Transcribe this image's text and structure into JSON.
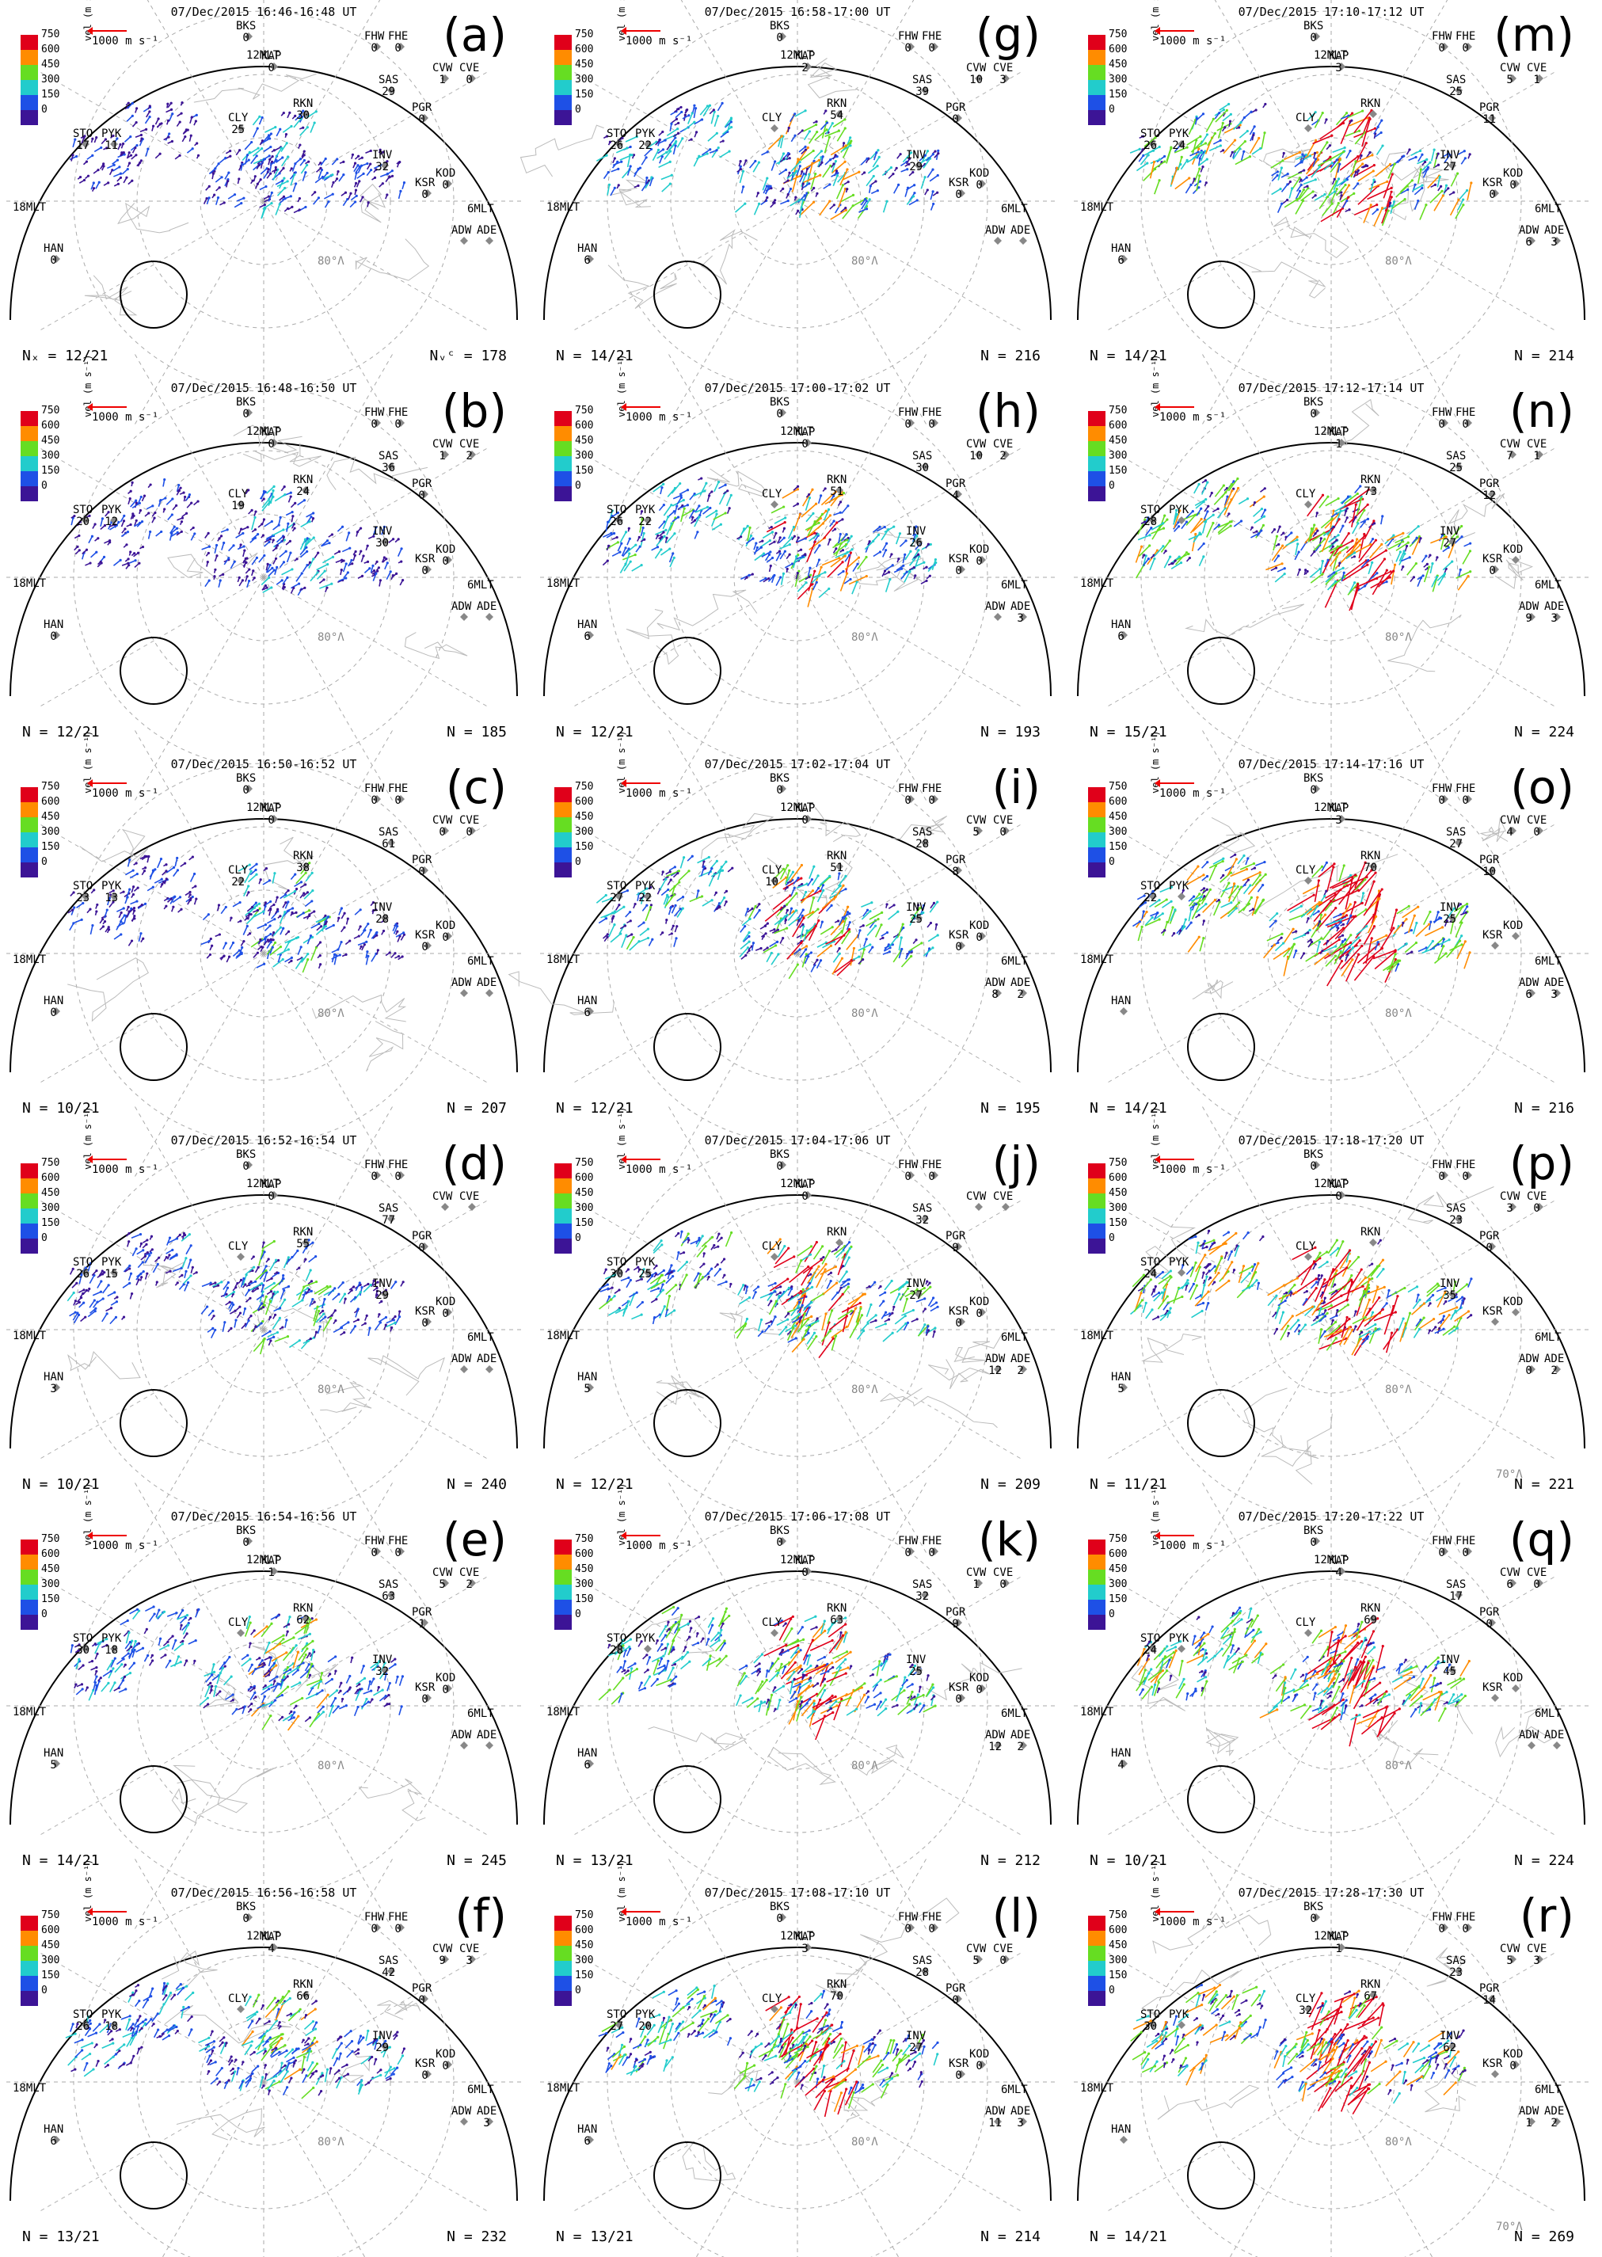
{
  "colorbar": {
    "unit": "vel (m s⁻¹)",
    "ticks": [
      "750",
      "600",
      "450",
      "300",
      "150",
      "0"
    ],
    "colors": [
      "#e0001a",
      "#ff8c00",
      "#66dd22",
      "#22cccc",
      "#1e50e6",
      "#3c1496"
    ],
    "ref_vector": "1000 m s⁻¹"
  },
  "grid_labels": {
    "noon": "12MLT",
    "dusk": "18MLT",
    "dawn": "6MLT",
    "lat80": "80°Λ",
    "lat70": "70°Λ"
  },
  "panels": [
    {
      "label": "(a)",
      "time": "07/Dec/2015 16:46-16:48 UT",
      "nrads": "Nₓ = 12/21",
      "nvc": "Nᵥᶜ = 178"
    },
    {
      "label": "(b)",
      "time": "07/Dec/2015 16:48-16:50 UT",
      "nrads": "N = 12/21",
      "nvc": "N = 185"
    },
    {
      "label": "(c)",
      "time": "07/Dec/2015 16:50-16:52 UT",
      "nrads": "N = 10/21",
      "nvc": "N = 207"
    },
    {
      "label": "(d)",
      "time": "07/Dec/2015 16:52-16:54 UT",
      "nrads": "N = 10/21",
      "nvc": "N = 240"
    },
    {
      "label": "(e)",
      "time": "07/Dec/2015 16:54-16:56 UT",
      "nrads": "N = 14/21",
      "nvc": "N = 245"
    },
    {
      "label": "(f)",
      "time": "07/Dec/2015 16:56-16:58 UT",
      "nrads": "N = 13/21",
      "nvc": "N = 232"
    },
    {
      "label": "(g)",
      "time": "07/Dec/2015 16:58-17:00 UT",
      "nrads": "N = 14/21",
      "nvc": "N = 216"
    },
    {
      "label": "(h)",
      "time": "07/Dec/2015 17:00-17:02 UT",
      "nrads": "N = 12/21",
      "nvc": "N = 193"
    },
    {
      "label": "(i)",
      "time": "07/Dec/2015 17:02-17:04 UT",
      "nrads": "N = 12/21",
      "nvc": "N = 195"
    },
    {
      "label": "(j)",
      "time": "07/Dec/2015 17:04-17:06 UT",
      "nrads": "N = 12/21",
      "nvc": "N = 209"
    },
    {
      "label": "(k)",
      "time": "07/Dec/2015 17:06-17:08 UT",
      "nrads": "N = 13/21",
      "nvc": "N = 212"
    },
    {
      "label": "(l)",
      "time": "07/Dec/2015 17:08-17:10 UT",
      "nrads": "N = 13/21",
      "nvc": "N = 214"
    },
    {
      "label": "(m)",
      "time": "07/Dec/2015 17:10-17:12 UT",
      "nrads": "N = 14/21",
      "nvc": "N = 214"
    },
    {
      "label": "(n)",
      "time": "07/Dec/2015 17:12-17:14 UT",
      "nrads": "N = 15/21",
      "nvc": "N = 224"
    },
    {
      "label": "(o)",
      "time": "07/Dec/2015 17:14-17:16 UT",
      "nrads": "N = 14/21",
      "nvc": "N = 216"
    },
    {
      "label": "(p)",
      "time": "07/Dec/2015 17:18-17:20 UT",
      "nrads": "N = 11/21",
      "nvc": "N = 221"
    },
    {
      "label": "(q)",
      "time": "07/Dec/2015 17:20-17:22 UT",
      "nrads": "N = 10/21",
      "nvc": "N = 224"
    },
    {
      "label": "(r)",
      "time": "07/Dec/2015 17:28-17:30 UT",
      "nrads": "N = 14/21",
      "nvc": "N = 269"
    }
  ],
  "radar_counts": [
    {
      "BKS": "0",
      "SAS": "29",
      "RKN": "30",
      "KAP": "0",
      "CLY": "25",
      "INV": "32",
      "STO": "17",
      "PYK": "11",
      "HAN": "0",
      "PGR": "0",
      "KSR": "0",
      "KOD": "0",
      "CVW": "1",
      "CVE": "0",
      "FHW": "0",
      "FHE": "0",
      "ADW": "",
      "ADE": ""
    },
    {
      "BKS": "0",
      "SAS": "36",
      "RKN": "24",
      "KAP": "0",
      "CLY": "19",
      "INV": "30",
      "STO": "20",
      "PYK": "12",
      "HAN": "0",
      "PGR": "0",
      "KSR": "0",
      "KOD": "0",
      "CVW": "1",
      "CVE": "2",
      "FHW": "0",
      "FHE": "0",
      "ADW": "",
      "ADE": ""
    },
    {
      "BKS": "0",
      "SAS": "61",
      "RKN": "38",
      "KAP": "0",
      "CLY": "22",
      "INV": "28",
      "STO": "23",
      "PYK": "13",
      "HAN": "0",
      "PGR": "0",
      "KSR": "0",
      "KOD": "0",
      "CVW": "0",
      "CVE": "0",
      "FHW": "0",
      "FHE": "0",
      "ADW": "",
      "ADE": ""
    },
    {
      "BKS": "0",
      "SAS": "77",
      "RKN": "55",
      "KAP": "0",
      "CLY": "",
      "INV": "29",
      "STO": "26",
      "PYK": "15",
      "HAN": "3",
      "PGR": "0",
      "KSR": "0",
      "KOD": "0",
      "CVW": "",
      "CVE": "",
      "FHW": "0",
      "FHE": "0",
      "ADW": "",
      "ADE": ""
    },
    {
      "BKS": "0",
      "SAS": "63",
      "RKN": "62",
      "KAP": "1",
      "CLY": "",
      "INV": "32",
      "STO": "30",
      "PYK": "18",
      "HAN": "5",
      "PGR": "1",
      "KSR": "0",
      "KOD": "0",
      "CVW": "5",
      "CVE": "2",
      "FHW": "0",
      "FHE": "0",
      "ADW": "",
      "ADE": ""
    },
    {
      "BKS": "0",
      "SAS": "42",
      "RKN": "66",
      "KAP": "4",
      "CLY": "",
      "INV": "29",
      "STO": "26",
      "PYK": "18",
      "HAN": "6",
      "PGR": "0",
      "KSR": "0",
      "KOD": "0",
      "CVW": "9",
      "CVE": "3",
      "FHW": "0",
      "FHE": "0",
      "ADW": "",
      "ADE": "3"
    },
    {
      "BKS": "0",
      "SAS": "39",
      "RKN": "54",
      "KAP": "2",
      "CLY": "",
      "INV": "29",
      "STO": "26",
      "PYK": "22",
      "HAN": "6",
      "PGR": "0",
      "KSR": "0",
      "KOD": "0",
      "CVW": "10",
      "CVE": "3",
      "FHW": "0",
      "FHE": "0",
      "ADW": "",
      "ADE": ""
    },
    {
      "BKS": "0",
      "SAS": "30",
      "RKN": "51",
      "KAP": "0",
      "CLY": "",
      "INV": "26",
      "STO": "26",
      "PYK": "22",
      "HAN": "6",
      "PGR": "4",
      "KSR": "0",
      "KOD": "0",
      "CVW": "10",
      "CVE": "2",
      "FHW": "0",
      "FHE": "0",
      "ADW": "",
      "ADE": "3"
    },
    {
      "BKS": "0",
      "SAS": "28",
      "RKN": "51",
      "KAP": "0",
      "CLY": "10",
      "INV": "25",
      "STO": "27",
      "PYK": "22",
      "HAN": "6",
      "PGR": "8",
      "KSR": "0",
      "KOD": "0",
      "CVW": "5",
      "CVE": "0",
      "FHW": "0",
      "FHE": "0",
      "ADW": "8",
      "ADE": "2"
    },
    {
      "BKS": "0",
      "SAS": "32",
      "RKN": "",
      "KAP": "0",
      "CLY": "",
      "INV": "27",
      "STO": "30",
      "PYK": "25",
      "HAN": "5",
      "PGR": "9",
      "KSR": "0",
      "KOD": "0",
      "CVW": "",
      "CVE": "",
      "FHW": "0",
      "FHE": "0",
      "ADW": "12",
      "ADE": "2"
    },
    {
      "BKS": "0",
      "SAS": "32",
      "RKN": "63",
      "KAP": "0",
      "CLY": "",
      "INV": "25",
      "STO": "28",
      "PYK": "",
      "HAN": "6",
      "PGR": "9",
      "KSR": "0",
      "KOD": "0",
      "CVW": "1",
      "CVE": "0",
      "FHW": "0",
      "FHE": "0",
      "ADW": "12",
      "ADE": "2"
    },
    {
      "BKS": "0",
      "SAS": "28",
      "RKN": "70",
      "KAP": "3",
      "CLY": "",
      "INV": "27",
      "STO": "27",
      "PYK": "20",
      "HAN": "6",
      "PGR": "0",
      "KSR": "0",
      "KOD": "0",
      "CVW": "5",
      "CVE": "0",
      "FHW": "0",
      "FHE": "0",
      "ADW": "11",
      "ADE": "3"
    },
    {
      "BKS": "0",
      "SAS": "25",
      "RKN": "",
      "KAP": "3",
      "CLY": "",
      "INV": "27",
      "STO": "26",
      "PYK": "24",
      "HAN": "6",
      "PGR": "11",
      "KSR": "0",
      "KOD": "0",
      "CVW": "5",
      "CVE": "1",
      "FHW": "0",
      "FHE": "0",
      "ADW": "6",
      "ADE": "3"
    },
    {
      "BKS": "0",
      "SAS": "25",
      "RKN": "73",
      "KAP": "1",
      "CLY": "",
      "INV": "27",
      "STO": "28",
      "PYK": "",
      "HAN": "6",
      "PGR": "12",
      "KSR": "0",
      "KOD": "",
      "CVW": "7",
      "CVE": "1",
      "FHW": "0",
      "FHE": "0",
      "ADW": "9",
      "ADE": "3"
    },
    {
      "BKS": "0",
      "SAS": "27",
      "RKN": "70",
      "KAP": "3",
      "CLY": "",
      "INV": "25",
      "STO": "22",
      "PYK": "",
      "HAN": "",
      "PGR": "10",
      "KSR": "",
      "KOD": "",
      "CVW": "4",
      "CVE": "0",
      "FHW": "0",
      "FHE": "0",
      "ADW": "6",
      "ADE": "3"
    },
    {
      "BKS": "0",
      "SAS": "23",
      "RKN": "",
      "KAP": "0",
      "CLY": "",
      "INV": "35",
      "STO": "24",
      "PYK": "",
      "HAN": "5",
      "PGR": "0",
      "KSR": "",
      "KOD": "",
      "CVW": "3",
      "CVE": "0",
      "FHW": "0",
      "FHE": "0",
      "ADW": "0",
      "ADE": "2"
    },
    {
      "BKS": "0",
      "SAS": "17",
      "RKN": "69",
      "KAP": "4",
      "CLY": "",
      "INV": "45",
      "STO": "24",
      "PYK": "",
      "HAN": "4",
      "PGR": "0",
      "KSR": "",
      "KOD": "",
      "CVW": "6",
      "CVE": "0",
      "FHW": "0",
      "FHE": "0",
      "ADW": "",
      "ADE": ""
    },
    {
      "BKS": "0",
      "SAS": "23",
      "RKN": "67",
      "KAP": "1",
      "CLY": "32",
      "INV": "62",
      "STO": "30",
      "PYK": "",
      "HAN": "",
      "PGR": "14",
      "KSR": "",
      "KOD": "0",
      "CVW": "5",
      "CVE": "3",
      "FHW": "0",
      "FHE": "0",
      "ADW": "1",
      "ADE": "2"
    }
  ]
}
